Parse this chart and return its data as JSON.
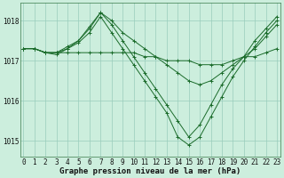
{
  "xlabel": "Graphe pression niveau de la mer (hPa)",
  "bg_color": "#cceedd",
  "plot_bg_color": "#cceedd",
  "grid_color": "#99ccbb",
  "line_color": "#1a6b2a",
  "marker_color": "#1a6b2a",
  "hours": [
    0,
    1,
    2,
    3,
    4,
    5,
    6,
    7,
    8,
    9,
    10,
    11,
    12,
    13,
    14,
    15,
    16,
    17,
    18,
    19,
    20,
    21,
    22,
    23
  ],
  "series": [
    [
      1017.3,
      1017.3,
      1017.2,
      1017.2,
      1017.2,
      1017.2,
      1017.2,
      1017.2,
      1017.2,
      1017.2,
      1017.2,
      1017.1,
      1017.1,
      1017.0,
      1017.0,
      1017.0,
      1016.9,
      1016.9,
      1016.9,
      1017.0,
      1017.1,
      1017.1,
      1017.2,
      1017.3
    ],
    [
      1017.3,
      1017.3,
      1017.2,
      1017.2,
      1017.3,
      1017.5,
      1017.8,
      1018.2,
      1018.0,
      1017.7,
      1017.5,
      1017.3,
      1017.1,
      1016.9,
      1016.7,
      1016.5,
      1016.4,
      1016.5,
      1016.7,
      1016.9,
      1017.1,
      1017.3,
      1017.6,
      1017.9
    ],
    [
      1017.3,
      1017.3,
      1017.2,
      1017.2,
      1017.35,
      1017.5,
      1017.85,
      1018.2,
      1017.9,
      1017.5,
      1017.1,
      1016.7,
      1016.3,
      1015.9,
      1015.5,
      1015.1,
      1015.4,
      1015.9,
      1016.4,
      1016.8,
      1017.1,
      1017.5,
      1017.8,
      1018.1
    ],
    [
      1017.3,
      1017.3,
      1017.2,
      1017.15,
      1017.3,
      1017.45,
      1017.7,
      1018.1,
      1017.7,
      1017.3,
      1016.9,
      1016.5,
      1016.1,
      1015.7,
      1015.1,
      1014.9,
      1015.1,
      1015.6,
      1016.1,
      1016.6,
      1017.0,
      1017.35,
      1017.7,
      1018.0
    ]
  ],
  "ylim": [
    1014.6,
    1018.45
  ],
  "yticks": [
    1015,
    1016,
    1017,
    1018
  ],
  "xticks": [
    0,
    1,
    2,
    3,
    4,
    5,
    6,
    7,
    8,
    9,
    10,
    11,
    12,
    13,
    14,
    15,
    16,
    17,
    18,
    19,
    20,
    21,
    22,
    23
  ],
  "tick_fontsize": 5.5,
  "label_fontsize": 6.5
}
